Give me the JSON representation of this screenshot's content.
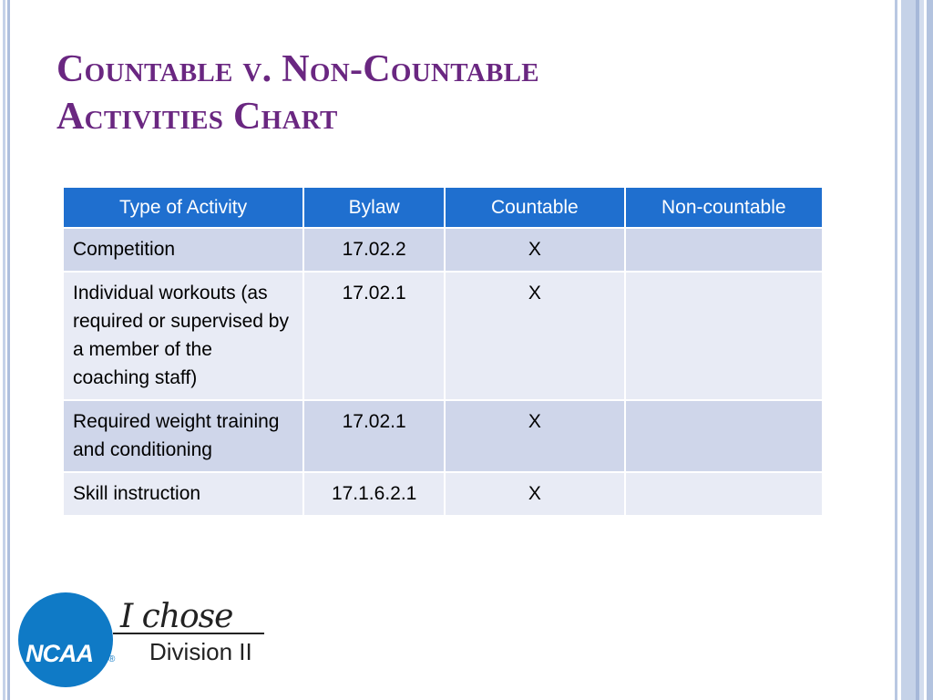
{
  "slide": {
    "title_line1": "Countable v. Non-Countable",
    "title_line2": "Activities Chart"
  },
  "table": {
    "headers": [
      "Type of Activity",
      "Bylaw",
      "Countable",
      "Non-countable"
    ],
    "rows": [
      {
        "activity": "Competition",
        "bylaw": "17.02.2",
        "countable": "X",
        "noncountable": ""
      },
      {
        "activity": "Individual workouts (as required or supervised by a member of the coaching staff)",
        "bylaw": "17.02.1",
        "countable": "X",
        "noncountable": ""
      },
      {
        "activity": "Required weight training and conditioning",
        "bylaw": "17.02.1",
        "countable": "X",
        "noncountable": ""
      },
      {
        "activity": "Skill instruction",
        "bylaw": "17.1.6.2.1",
        "countable": "X",
        "noncountable": ""
      }
    ]
  },
  "logo": {
    "ncaa": "NCAA",
    "registered": "®",
    "tagline_script": "I chose",
    "tagline_division": "Division II"
  },
  "colors": {
    "title": "#6a2781",
    "header_bg": "#1f6fcf",
    "row_odd": "#cfd6ea",
    "row_even": "#e8ebf5",
    "ncaa_blue": "#0f7ac6"
  }
}
